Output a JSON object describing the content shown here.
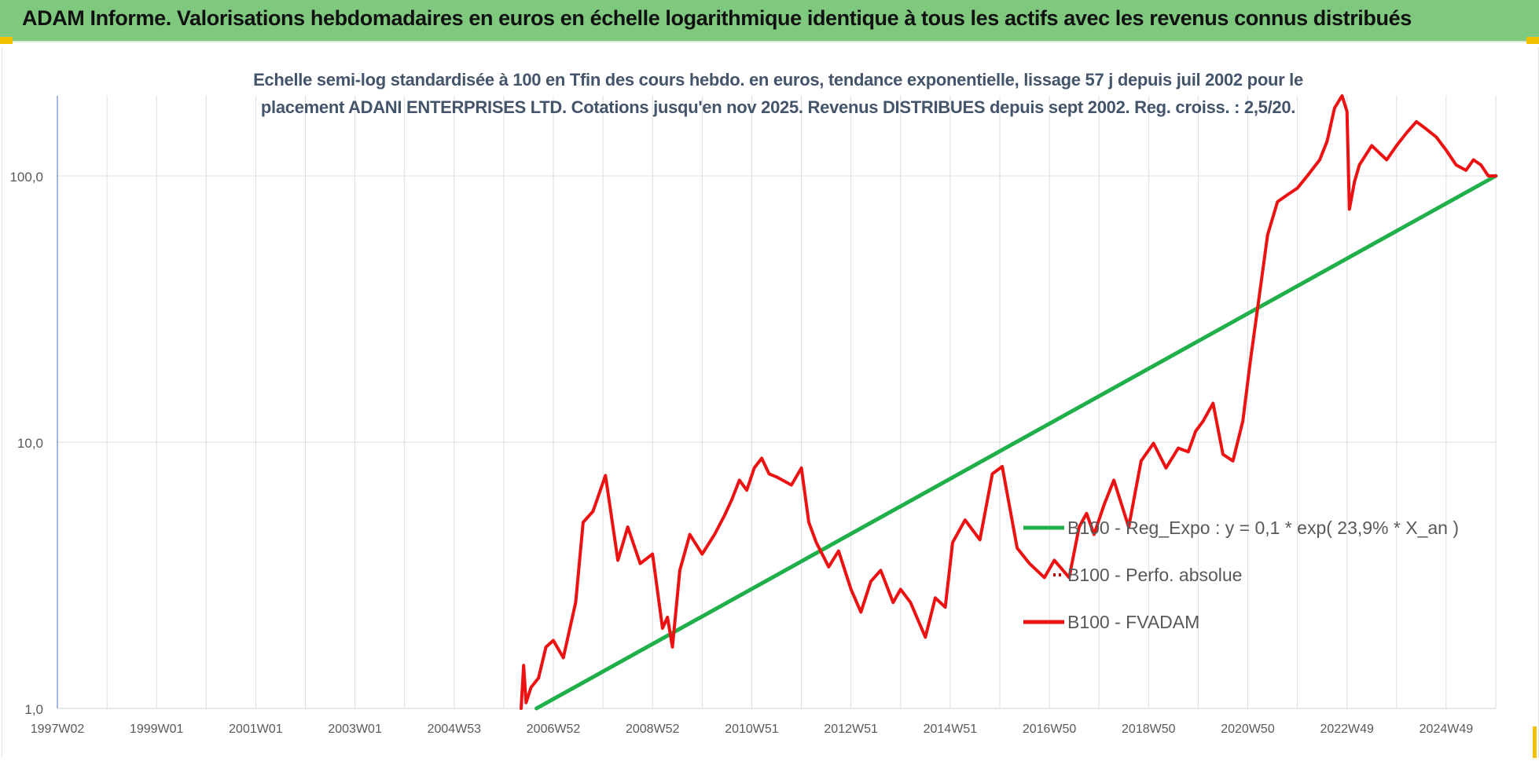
{
  "header": {
    "title": "ADAM Informe. Valorisations hebdomadaires en euros en échelle logarithmique identique à tous les actifs avec les revenus connus distribués"
  },
  "colors": {
    "banner": "#7fc97f",
    "trend": "#1fb04c",
    "fvadam": "#ee1111",
    "perfo": "#c00000",
    "grid": "#dddddd",
    "text": "#595959",
    "title": "#44546a"
  },
  "chart_data": {
    "type": "line",
    "title_lines": [
      "Echelle semi-log standardisée à 100 en Tfin des cours hebdo. en euros, tendance exponentielle, lissage 57 j depuis juil 2002 pour le",
      "placement ADANI ENTERPRISES LTD. Cotations jusqu'en nov 2025. Revenus DISTRIBUES depuis sept 2002. Reg. croiss. : 2,5/20."
    ],
    "y_scale": "log",
    "y_range": [
      1,
      200
    ],
    "y_ticks": [
      1,
      10,
      100
    ],
    "y_tick_labels": [
      "1,0",
      "10,0",
      "100,0"
    ],
    "x_range": [
      1997.0,
      2026.0
    ],
    "x_ticks": [
      1997.0,
      1999.0,
      2001.0,
      2003.0,
      2005.0,
      2007.0,
      2009.0,
      2011.0,
      2013.0,
      2015.0,
      2017.0,
      2019.0,
      2021.0,
      2023.0,
      2025.0
    ],
    "x_tick_labels": [
      "1997W02",
      "1999W01",
      "2001W01",
      "2003W01",
      "2004W53",
      "2006W52",
      "2008W52",
      "2010W51",
      "2012W51",
      "2014W51",
      "2016W50",
      "2018W50",
      "2020W50",
      "2022W49",
      "2024W49"
    ],
    "grid": true,
    "legend_position": "right-middle",
    "series": [
      {
        "name": "B100 - Reg_Expo : y = 0,1 * exp( 23,9% * X_an )",
        "style": "solid",
        "x": [
          2006.66,
          2026.0
        ],
        "y": [
          1.0,
          100.0
        ]
      },
      {
        "name": "B100 - Perfo. absolue",
        "style": "dotted",
        "x": [],
        "y": []
      },
      {
        "name": "B100 - FVADAM",
        "style": "solid",
        "x": [
          2006.35,
          2006.4,
          2006.45,
          2006.55,
          2006.7,
          2006.85,
          2007.0,
          2007.2,
          2007.45,
          2007.6,
          2007.8,
          2008.05,
          2008.3,
          2008.5,
          2008.75,
          2009.0,
          2009.2,
          2009.3,
          2009.4,
          2009.55,
          2009.75,
          2010.0,
          2010.25,
          2010.45,
          2010.6,
          2010.75,
          2010.9,
          2011.05,
          2011.2,
          2011.35,
          2011.5,
          2011.8,
          2012.0,
          2012.15,
          2012.3,
          2012.55,
          2012.75,
          2013.0,
          2013.2,
          2013.4,
          2013.6,
          2013.85,
          2014.0,
          2014.2,
          2014.5,
          2014.7,
          2014.9,
          2015.05,
          2015.3,
          2015.6,
          2015.85,
          2016.05,
          2016.35,
          2016.6,
          2016.9,
          2017.1,
          2017.4,
          2017.6,
          2017.75,
          2017.9,
          2018.1,
          2018.3,
          2018.6,
          2018.85,
          2019.1,
          2019.35,
          2019.6,
          2019.8,
          2019.95,
          2020.1,
          2020.3,
          2020.5,
          2020.7,
          2020.9,
          2021.05,
          2021.2,
          2021.4,
          2021.6,
          2021.8,
          2022.0,
          2022.2,
          2022.45,
          2022.6,
          2022.75,
          2022.9,
          2023.0,
          2023.05,
          2023.15,
          2023.25,
          2023.5,
          2023.8,
          2024.0,
          2024.2,
          2024.4,
          2024.6,
          2024.8,
          2025.0,
          2025.2,
          2025.4,
          2025.55,
          2025.7,
          2025.85,
          2026.0
        ],
        "y": [
          1.0,
          1.45,
          1.05,
          1.2,
          1.3,
          1.7,
          1.8,
          1.55,
          2.5,
          5.0,
          5.5,
          7.5,
          3.6,
          4.8,
          3.5,
          3.8,
          2.0,
          2.2,
          1.7,
          3.3,
          4.5,
          3.8,
          4.5,
          5.3,
          6.1,
          7.2,
          6.6,
          8.0,
          8.7,
          7.6,
          7.4,
          6.9,
          8.0,
          5.0,
          4.2,
          3.4,
          3.9,
          2.8,
          2.3,
          3.0,
          3.3,
          2.5,
          2.8,
          2.5,
          1.85,
          2.6,
          2.4,
          4.2,
          5.1,
          4.3,
          7.6,
          8.1,
          4.0,
          3.5,
          3.1,
          3.6,
          3.1,
          4.8,
          5.4,
          4.5,
          5.8,
          7.2,
          4.8,
          8.5,
          9.9,
          8.0,
          9.5,
          9.2,
          11.0,
          12.0,
          14.0,
          9.0,
          8.5,
          12.0,
          20.0,
          32.0,
          60.0,
          80.0,
          85.0,
          90.0,
          100.0,
          115.0,
          135.0,
          180.0,
          200.0,
          175.0,
          75.0,
          95.0,
          110.0,
          130.0,
          115.0,
          130.0,
          145.0,
          160.0,
          150.0,
          140.0,
          125.0,
          110.0,
          105.0,
          115.0,
          110.0,
          100.0,
          100.0
        ]
      }
    ]
  }
}
